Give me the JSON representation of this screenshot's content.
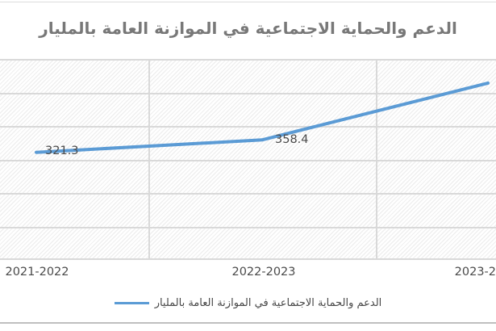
{
  "title": "الدعم والحماية الاجتماعية في الموازنة العامة بالمليار",
  "chart_data": {
    "type": "line",
    "title": "الدعم والحماية الاجتماعية في الموازنة العامة بالمليار",
    "categories": [
      "2021-2022",
      "2022-2023",
      "2023-2"
    ],
    "series": [
      {
        "name": "الدعم والحماية الاجتماعية في الموازنة العامة بالمليار",
        "values": [
          321.3,
          358.4,
          528
        ]
      }
    ],
    "data_labels": [
      "321.3",
      "358.4"
    ],
    "xlabel": "",
    "ylabel": "",
    "ylim": [
      0,
      600
    ],
    "y_major_unit": 100,
    "grid": true,
    "legend_position": "bottom",
    "plot_area_fill": "light-diagonal-hatch"
  },
  "legend": {
    "label": "الدعم والحماية الاجتماعية في الموازنة العامة بالمليار"
  },
  "colors": {
    "series_line": "#5B9BD5",
    "gridline": "#d9d9d9",
    "title_text": "#787878",
    "label_text": "#4a4a4a"
  }
}
